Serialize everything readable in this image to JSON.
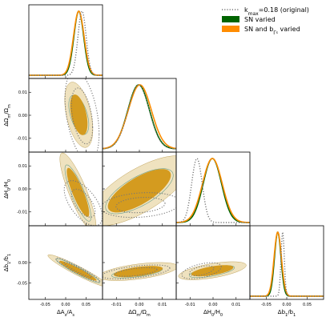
{
  "chart_data": {
    "type": "corner",
    "parameters": [
      {
        "label_main": "ΔA",
        "label_sub": "s",
        "label_div": "/A",
        "label_sub2": "s",
        "ticks": [
          "-0.05",
          "0.00",
          "0.05"
        ],
        "range": [
          -0.09,
          0.09
        ]
      },
      {
        "label_main": "ΔΩ",
        "label_sub": "m",
        "label_div": "/Ω",
        "label_sub2": "m",
        "ticks": [
          "-0.01",
          "0.00",
          "0.01"
        ],
        "range": [
          -0.016,
          0.016
        ]
      },
      {
        "label_main": "ΔH",
        "label_sub": "0",
        "label_div": "/H",
        "label_sub2": "0",
        "ticks": [
          "-0.01",
          "0.00",
          "0.01"
        ],
        "range": [
          -0.016,
          0.016
        ]
      },
      {
        "label_main": "Δb",
        "label_sub": "1",
        "label_div": "/b",
        "label_sub2": "1",
        "ticks": [
          "-0.05",
          "0.00",
          "0.05"
        ],
        "range": [
          -0.09,
          0.09
        ]
      }
    ],
    "y_tick_labels": {
      "1": [
        "0.01",
        "0.00",
        "-0.01"
      ],
      "2": [
        "0.01",
        "0.00",
        "-0.01"
      ],
      "3": [
        "0.00",
        "-0.05"
      ]
    },
    "legend": [
      {
        "label_pre": "k",
        "label_sub": "max",
        "label_post": "=0.18 (original)",
        "style": "dotted",
        "color": "#777777"
      },
      {
        "label_pre": "SN varied",
        "label_sub": "",
        "label_post": "",
        "style": "fill",
        "color": "#006400"
      },
      {
        "label_pre": "SN and b",
        "label_sub": "Γ",
        "label_sub3": "s",
        "label_post": " varied",
        "style": "fill",
        "color": "#ff8c00"
      }
    ],
    "colors": {
      "green": "#006400",
      "orange": "#ff8c00",
      "orange_inner": "#d49b1f",
      "orange_outer": "#efe2bf",
      "original": "#777777"
    },
    "marginals": [
      {
        "param": 0,
        "original": {
          "mean": 0.04,
          "sd": 0.01
        },
        "sn": {
          "mean": 0.032,
          "sd": 0.012
        },
        "sn_b": {
          "mean": 0.032,
          "sd": 0.013
        }
      },
      {
        "param": 1,
        "original": {
          "mean": -0.0003,
          "sd": 0.0046
        },
        "sn": {
          "mean": -0.0003,
          "sd": 0.0047
        },
        "sn_b": {
          "mean": 0.0002,
          "sd": 0.005
        }
      },
      {
        "param": 2,
        "original": {
          "mean": -0.007,
          "sd": 0.0023
        },
        "sn": {
          "mean": -0.0003,
          "sd": 0.004
        },
        "sn_b": {
          "mean": -0.0003,
          "sd": 0.0043
        }
      },
      {
        "param": 3,
        "original": {
          "mean": -0.01,
          "sd": 0.004
        },
        "sn": {
          "mean": -0.022,
          "sd": 0.008
        },
        "sn_b": {
          "mean": -0.022,
          "sd": 0.009
        }
      }
    ],
    "ellipses": [
      {
        "row": 1,
        "col": 0,
        "original": {
          "cx": 0.04,
          "cy": -0.0003,
          "sx": 0.017,
          "sy": 0.008,
          "rho": -0.4
        },
        "sn": {
          "cx": 0.032,
          "cy": 0.0002,
          "sx": 0.01,
          "sy": 0.0035,
          "rho": -0.5
        },
        "sn_b": {
          "cx": 0.032,
          "cy": 0.0002,
          "sx": 0.014,
          "sy": 0.0058,
          "rho": -0.45
        }
      },
      {
        "row": 2,
        "col": 0,
        "original": {
          "cx": 0.043,
          "cy": -0.0062,
          "sx": 0.019,
          "sy": 0.004,
          "rho": -0.6
        },
        "sn": {
          "cx": 0.03,
          "cy": -0.0018,
          "sx": 0.013,
          "sy": 0.005,
          "rho": -0.85
        },
        "sn_b": {
          "cx": 0.03,
          "cy": -0.0015,
          "sx": 0.018,
          "sy": 0.007,
          "rho": -0.85
        }
      },
      {
        "row": 2,
        "col": 1,
        "original": {
          "cx": 0.0005,
          "cy": -0.007,
          "sx": 0.007,
          "sy": 0.0022,
          "rho": 0.2
        },
        "sn": {
          "cx": 0.0,
          "cy": -0.001,
          "sx": 0.006,
          "sy": 0.004,
          "rho": 0.7
        },
        "sn_b": {
          "cx": 0.0,
          "cy": -0.0008,
          "sx": 0.009,
          "sy": 0.0062,
          "rho": 0.72
        }
      },
      {
        "row": 3,
        "col": 0,
        "original": {
          "cx": 0.03,
          "cy": -0.018,
          "sx": 0.022,
          "sy": 0.012,
          "rho": -0.95
        },
        "sn": {
          "cx": 0.03,
          "cy": -0.02,
          "sx": 0.022,
          "sy": 0.012,
          "rho": -0.95
        },
        "sn_b": {
          "cx": 0.03,
          "cy": -0.02,
          "sx": 0.03,
          "sy": 0.016,
          "rho": -0.95
        }
      },
      {
        "row": 3,
        "col": 1,
        "original": {
          "cx": -0.0015,
          "cy": -0.023,
          "sx": 0.006,
          "sy": 0.007,
          "rho": 0.55
        },
        "sn": {
          "cx": -0.001,
          "cy": -0.024,
          "sx": 0.0045,
          "sy": 0.0055,
          "rho": 0.6
        },
        "sn_b": {
          "cx": -0.0005,
          "cy": -0.022,
          "sx": 0.007,
          "sy": 0.009,
          "rho": 0.55
        }
      },
      {
        "row": 3,
        "col": 2,
        "original": {
          "cx": -0.005,
          "cy": -0.02,
          "sx": 0.0035,
          "sy": 0.008,
          "rho": 0.5
        },
        "sn": {
          "cx": -0.0005,
          "cy": -0.022,
          "sx": 0.004,
          "sy": 0.006,
          "rho": 0.65
        },
        "sn_b": {
          "cx": -0.0003,
          "cy": -0.02,
          "sx": 0.006,
          "sy": 0.009,
          "rho": 0.6
        }
      }
    ]
  }
}
